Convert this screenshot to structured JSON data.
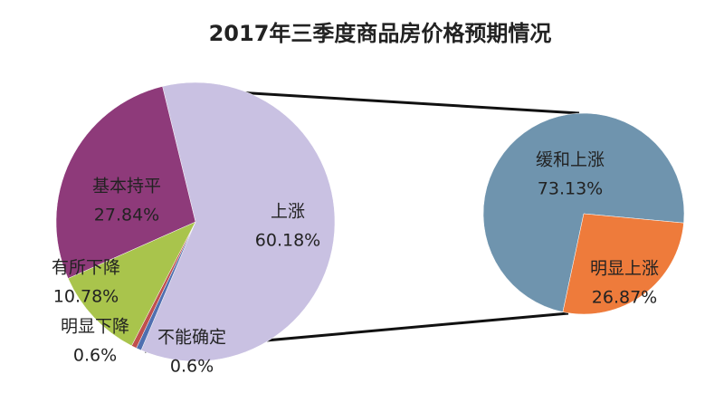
{
  "chart_data": [
    {
      "type": "pie",
      "title": "2017年三季度商品房价格预期情况",
      "categories": [
        "上涨",
        "不能确定",
        "明显下降",
        "有所下降",
        "基本持平"
      ],
      "values": [
        60.18,
        0.6,
        0.6,
        10.78,
        27.84
      ],
      "value_labels": [
        "60.18%",
        "0.6%",
        "0.6%",
        "10.78%",
        "27.84%"
      ],
      "colors": [
        "#c9c1e2",
        "#4f6fb0",
        "#c0504d",
        "#a9c44c",
        "#8e3a7a"
      ]
    },
    {
      "type": "pie",
      "categories": [
        "缓和上涨",
        "明显上涨"
      ],
      "values": [
        73.13,
        26.87
      ],
      "value_labels": [
        "73.13%",
        "26.87%"
      ],
      "colors": [
        "#6f94ae",
        "#ee7b3b"
      ]
    }
  ]
}
